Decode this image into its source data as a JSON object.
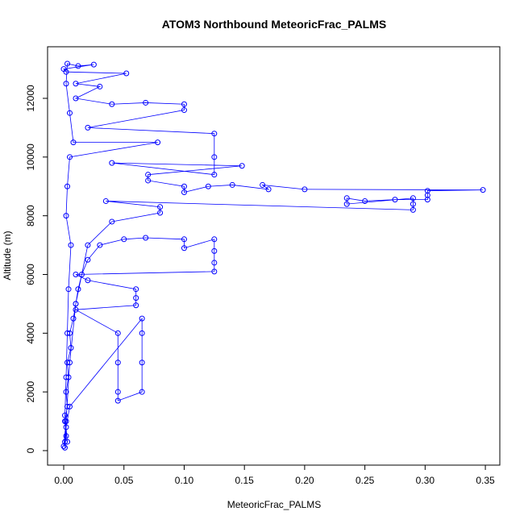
{
  "chart_data": {
    "type": "line",
    "title": "ATOM3 Northbound MeteoricFrac_PALMS",
    "x_label": "MeteoricFrac_PALMS",
    "y_label": "Altitude (m)",
    "series": [
      {
        "color": "#0000ff",
        "marker": "open-circle",
        "x": [
          0.001,
          0.002,
          0.001,
          0.003,
          0.002,
          0.004,
          0.003,
          0.006,
          0.005,
          0.008,
          0.01,
          0.012,
          0.015,
          0.02,
          0.03,
          0.05,
          0.068,
          0.1,
          0.1,
          0.125,
          0.125,
          0.125,
          0.125,
          0.01,
          0.02,
          0.06,
          0.06,
          0.06,
          0.01,
          0.045,
          0.045,
          0.045,
          0.045,
          0.065,
          0.065,
          0.065,
          0.065,
          0.005,
          0.002,
          0.001,
          0.0,
          0.002,
          0.005,
          0.01,
          0.02,
          0.04,
          0.08,
          0.08,
          0.035,
          0.29,
          0.29,
          0.29,
          0.235,
          0.235,
          0.25,
          0.275,
          0.302,
          0.302,
          0.302,
          0.348,
          0.2,
          0.165,
          0.17,
          0.14,
          0.12,
          0.1,
          0.1,
          0.07,
          0.07,
          0.148,
          0.04,
          0.125,
          0.125,
          0.125,
          0.02,
          0.1,
          0.1,
          0.068,
          0.04,
          0.01,
          0.03,
          0.01,
          0.052,
          0.002,
          0.0,
          0.025,
          0.012,
          0.003,
          0.002,
          0.005,
          0.008,
          0.078,
          0.005,
          0.003,
          0.002,
          0.006,
          0.004,
          0.003,
          0.002,
          0.001,
          0.003
        ],
        "values": [
          100,
          500,
          1000,
          1500,
          2000,
          2500,
          3000,
          3500,
          4000,
          4500,
          5000,
          5500,
          6000,
          6500,
          7000,
          7200,
          7250,
          7200,
          6900,
          7200,
          6800,
          6400,
          6100,
          6000,
          5800,
          5500,
          5200,
          4950,
          4800,
          4000,
          3000,
          2000,
          1700,
          2000,
          3000,
          4000,
          4500,
          1500,
          800,
          300,
          150,
          1000,
          3000,
          5000,
          7000,
          7800,
          8100,
          8300,
          8500,
          8200,
          8400,
          8600,
          8400,
          8600,
          8500,
          8550,
          8550,
          8700,
          8850,
          8880,
          8900,
          9050,
          8900,
          9050,
          9000,
          8800,
          9000,
          9200,
          9400,
          9700,
          9800,
          9400,
          10000,
          10800,
          11000,
          11600,
          11800,
          11850,
          11800,
          12000,
          12400,
          12500,
          12850,
          12900,
          13000,
          13150,
          13100,
          13180,
          12500,
          11500,
          10500,
          10500,
          10000,
          9000,
          8000,
          7000,
          5500,
          4000,
          2500,
          1200,
          300
        ]
      }
    ],
    "xlim": [
      -0.0134,
      0.362
    ],
    "ylim": [
      -494,
      13757
    ],
    "xticks": [
      {
        "value": 0,
        "label": "0.00"
      },
      {
        "value": 0.05,
        "label": "0.05"
      },
      {
        "value": 0.1,
        "label": "0.10"
      },
      {
        "value": 0.15,
        "label": "0.15"
      },
      {
        "value": 0.2,
        "label": "0.20"
      },
      {
        "value": 0.25,
        "label": "0.25"
      },
      {
        "value": 0.3,
        "label": "0.30"
      },
      {
        "value": 0.35,
        "label": "0.35"
      }
    ],
    "yticks": [
      0,
      2000,
      4000,
      6000,
      8000,
      10000,
      12000
    ]
  }
}
